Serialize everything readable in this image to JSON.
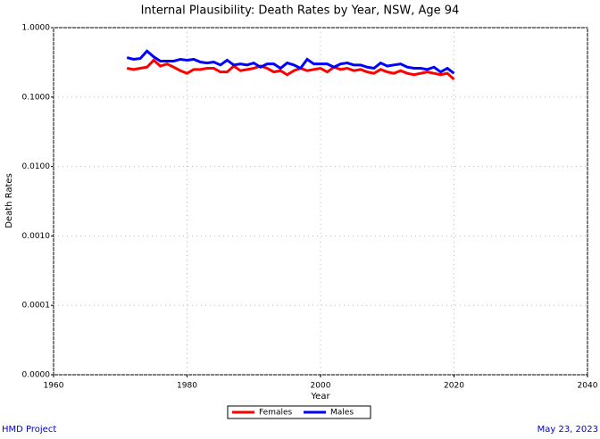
{
  "chart_data": {
    "type": "line",
    "title": "Internal Plausibility: Death Rates by Year, NSW, Age 94",
    "xlabel": "Year",
    "ylabel": "Death Rates",
    "x": [
      1971,
      1972,
      1973,
      1974,
      1975,
      1976,
      1977,
      1978,
      1979,
      1980,
      1981,
      1982,
      1983,
      1984,
      1985,
      1986,
      1987,
      1988,
      1989,
      1990,
      1991,
      1992,
      1993,
      1994,
      1995,
      1996,
      1997,
      1998,
      1999,
      2000,
      2001,
      2002,
      2003,
      2004,
      2005,
      2006,
      2007,
      2008,
      2009,
      2010,
      2011,
      2012,
      2013,
      2014,
      2015,
      2016,
      2017,
      2018,
      2019,
      2020
    ],
    "series": [
      {
        "name": "Females",
        "color": "#ff0000",
        "values": [
          0.26,
          0.25,
          0.26,
          0.27,
          0.34,
          0.28,
          0.3,
          0.27,
          0.24,
          0.22,
          0.25,
          0.25,
          0.26,
          0.26,
          0.23,
          0.23,
          0.28,
          0.24,
          0.25,
          0.26,
          0.28,
          0.26,
          0.23,
          0.24,
          0.21,
          0.24,
          0.26,
          0.24,
          0.25,
          0.26,
          0.23,
          0.27,
          0.25,
          0.26,
          0.24,
          0.25,
          0.23,
          0.22,
          0.25,
          0.23,
          0.22,
          0.24,
          0.22,
          0.21,
          0.22,
          0.23,
          0.22,
          0.21,
          0.22,
          0.18
        ]
      },
      {
        "name": "Males",
        "color": "#0000ff",
        "values": [
          0.37,
          0.35,
          0.36,
          0.46,
          0.38,
          0.33,
          0.33,
          0.33,
          0.35,
          0.34,
          0.35,
          0.32,
          0.31,
          0.32,
          0.29,
          0.34,
          0.29,
          0.3,
          0.29,
          0.31,
          0.27,
          0.3,
          0.3,
          0.26,
          0.31,
          0.29,
          0.26,
          0.35,
          0.3,
          0.3,
          0.3,
          0.27,
          0.3,
          0.31,
          0.29,
          0.29,
          0.27,
          0.26,
          0.31,
          0.28,
          0.29,
          0.3,
          0.27,
          0.26,
          0.26,
          0.25,
          0.27,
          0.23,
          0.26,
          0.22
        ]
      }
    ],
    "xlim": [
      1960,
      2040
    ],
    "xticks": [
      1960,
      1980,
      2000,
      2020,
      2040
    ],
    "ylim": [
      1e-05,
      1
    ],
    "yscale": "log",
    "yticks": [
      {
        "value": 1e-05,
        "label": "0.0000"
      },
      {
        "value": 0.0001,
        "label": "0.0001"
      },
      {
        "value": 0.001,
        "label": "0.0010"
      },
      {
        "value": 0.01,
        "label": "0.0100"
      },
      {
        "value": 0.1,
        "label": "0.1000"
      },
      {
        "value": 1,
        "label": "1.0000"
      }
    ],
    "grid": true,
    "legend": "bottom",
    "source": "HMD Project",
    "date": "May 23, 2023"
  }
}
